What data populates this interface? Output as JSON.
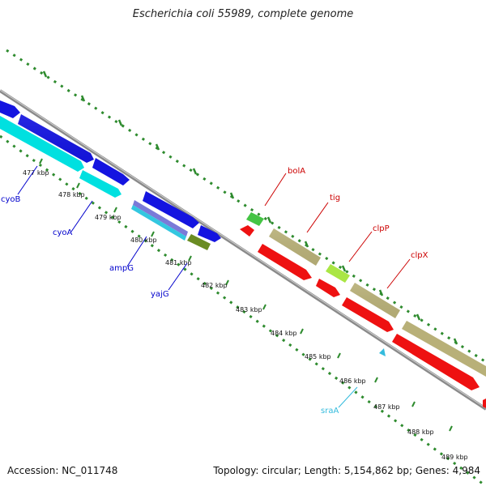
{
  "title": "Escherichia coli 55989, complete genome",
  "footer": {
    "accession_label": "Accession:",
    "accession": "NC_011748",
    "topology_label": "Topology:",
    "topology": "circular",
    "length_label": "Length:",
    "length": "5,154,862 bp",
    "genes_label": "Genes:",
    "genes": "4,984"
  },
  "colors": {
    "backbone": "#8a8a8a",
    "tick": "#2e8b2e",
    "cds_forward": "#1414e0",
    "cds_other_forward": "#00e0e0",
    "cds_reverse": "#ee1111",
    "trna_like": "#b8b078",
    "green_gene": "#44c444",
    "olive_gene": "#6a8c22",
    "label_forward": "#0000cc",
    "label_reverse": "#cc0000",
    "label_srna": "#33bbdd"
  },
  "tick_labels": [
    "477 kbp",
    "478 kbp",
    "479 kbp",
    "480 kbp",
    "481 kbp",
    "482 kbp",
    "483 kbp",
    "484 kbp",
    "485 kbp",
    "486 kbp",
    "487 kbp",
    "488 kbp",
    "489 kbp"
  ],
  "gene_labels": {
    "cyoB": "cyoB",
    "cyoA": "cyoA",
    "ampG": "ampG",
    "yajG": "yajG",
    "bolA": "bolA",
    "tig": "tig",
    "clpP": "clpP",
    "clpX": "clpX",
    "sraA": "sraA"
  }
}
